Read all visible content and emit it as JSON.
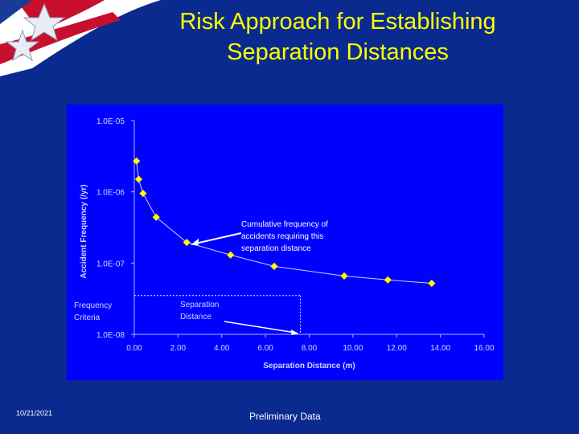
{
  "slide": {
    "title_line1": "Risk Approach for Establishing",
    "title_line2": "Separation Distances",
    "date": "10/21/2021",
    "note": "Preliminary Data"
  },
  "colors": {
    "background": "#0a2a8f",
    "plot_area": "#0000ff",
    "marker": "#ffff00",
    "axis_text": "#cfd8ff",
    "callout_text": "#ffffff",
    "banner_red": "#c8102e"
  },
  "icons": [
    "star-icon",
    "star-icon"
  ],
  "chart_data": {
    "type": "scatter",
    "xlabel": "Separation Distance  (m)",
    "ylabel": "Accident Frequency (/yr)",
    "xlim": [
      0,
      16
    ],
    "ylim_log10": [
      -8,
      -5
    ],
    "y_scale": "log",
    "x_ticks": [
      0,
      2,
      4,
      6,
      8,
      10,
      12,
      14,
      16
    ],
    "x_tick_labels": [
      "0.00",
      "2.00",
      "4.00",
      "6.00",
      "8.00",
      "10.00",
      "12.00",
      "14.00",
      "16.00"
    ],
    "y_ticks": [
      1e-05,
      1e-06,
      1e-07,
      1e-08
    ],
    "y_tick_labels": [
      "1.0E-05",
      "1.0E-06",
      "1.0E-07",
      "1.0E-08"
    ],
    "series": [
      {
        "x": [
          0.1,
          0.2,
          0.4,
          1.0,
          2.4,
          4.4,
          6.4,
          9.6,
          11.6,
          13.6
        ],
        "y": [
          2.7e-06,
          1.5e-06,
          9.5e-07,
          4.4e-07,
          1.95e-07,
          1.3e-07,
          9e-08,
          6.6e-08,
          5.8e-08,
          5.2e-08
        ]
      }
    ],
    "frequency_criteria": 3.5e-08,
    "separation_distance": 7.6,
    "annotations": {
      "callout": [
        "Cumulative frequency of",
        "accidents requiring this",
        "separation distance"
      ],
      "criteria_label": [
        "Frequency",
        "Criteria"
      ],
      "distance_label": [
        "Separation",
        "Distance"
      ]
    },
    "grid": false
  }
}
